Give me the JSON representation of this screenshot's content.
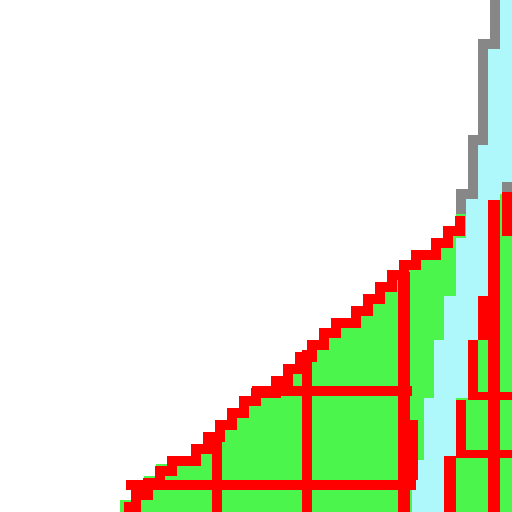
{
  "map": {
    "colors": {
      "background": "#ffffff",
      "land": "#4cf54c",
      "water": "#aef7fb",
      "road": "#ff0000",
      "shoreline": "#878787"
    },
    "layers": [
      "background",
      "land",
      "water",
      "roads",
      "shoreline"
    ]
  }
}
